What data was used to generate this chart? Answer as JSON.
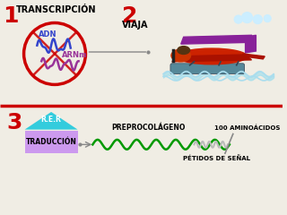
{
  "bg_color": "#f0ede4",
  "divider_color": "#cc0000",
  "num1_color": "#cc0000",
  "num2_color": "#cc0000",
  "num3_color": "#cc0000",
  "circle_color": "#cc0000",
  "adn_color": "#3344cc",
  "arnm_color": "#993399",
  "label_transcripcion": "TRANSCRIPCIÓN",
  "label_adn": "ADN",
  "label_arnm": "ARNm",
  "label_viaja": "VIAJA",
  "label_rer": "R.E.R",
  "label_traduccion": "TRADUCCIÓN",
  "label_preprocolageno": "PREPROCOLÁGENO",
  "label_100aa": "100 AMINOÁCIDOS",
  "label_peptidos": "PÉTIDOS DE SEÑAL",
  "rer_triangle_color": "#33ccdd",
  "rer_rect_color": "#cc99ee",
  "wavy_color": "#009900",
  "small_wavy_color": "#bbbbbb",
  "arrow_line_color": "#888888",
  "plane_red": "#cc2200",
  "plane_purple": "#882299",
  "plane_dark": "#331100",
  "float_cyan": "#99ddee",
  "water_cyan": "#aaddee",
  "cloud_color": "#cceeff"
}
